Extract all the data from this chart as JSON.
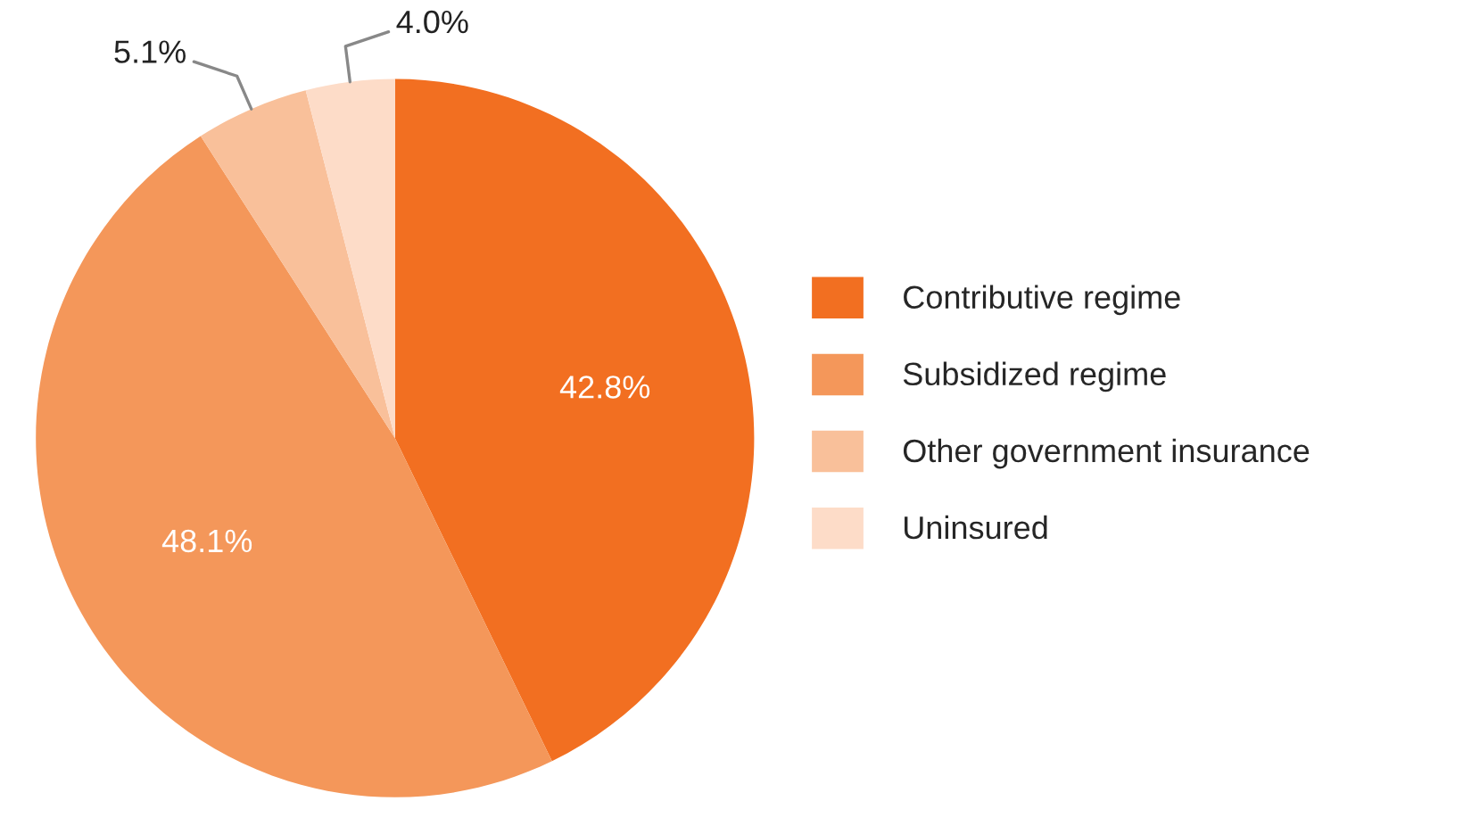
{
  "chart_data": {
    "type": "pie",
    "categories": [
      "Contributive regime",
      "Subsidized regime",
      "Other government insurance",
      "Uninsured"
    ],
    "values": [
      42.8,
      48.1,
      5.1,
      4.0
    ],
    "colors": [
      "#f26f21",
      "#f4975a",
      "#f9c09a",
      "#fddcc8"
    ],
    "value_labels": [
      "42.8%",
      "48.1%",
      "5.1%",
      "4.0%"
    ],
    "legend": "right"
  }
}
